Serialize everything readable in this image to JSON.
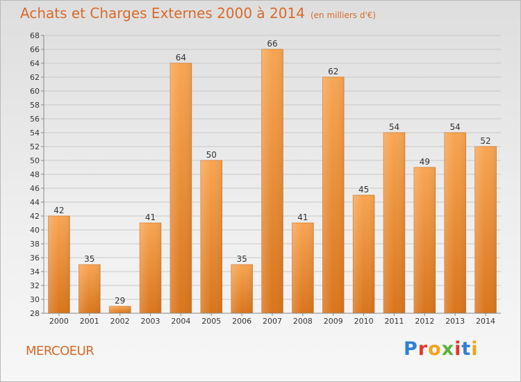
{
  "chart_data": {
    "type": "bar",
    "title": "Achats et Charges Externes 2000 à 2014",
    "subtitle": "(en milliers d'€)",
    "categories": [
      "2000",
      "2001",
      "2002",
      "2003",
      "2004",
      "2005",
      "2006",
      "2007",
      "2008",
      "2009",
      "2010",
      "2011",
      "2012",
      "2013",
      "2014"
    ],
    "values": [
      42,
      35,
      29,
      41,
      64,
      50,
      35,
      66,
      41,
      62,
      45,
      54,
      49,
      54,
      52
    ],
    "ylim": [
      28,
      68
    ],
    "ytick_step": 2,
    "grid": true,
    "bar_color": "#f0913a"
  },
  "place": "MERCOEUR",
  "logo": [
    "P",
    "r",
    "o",
    "x",
    "i",
    "t",
    "i"
  ]
}
